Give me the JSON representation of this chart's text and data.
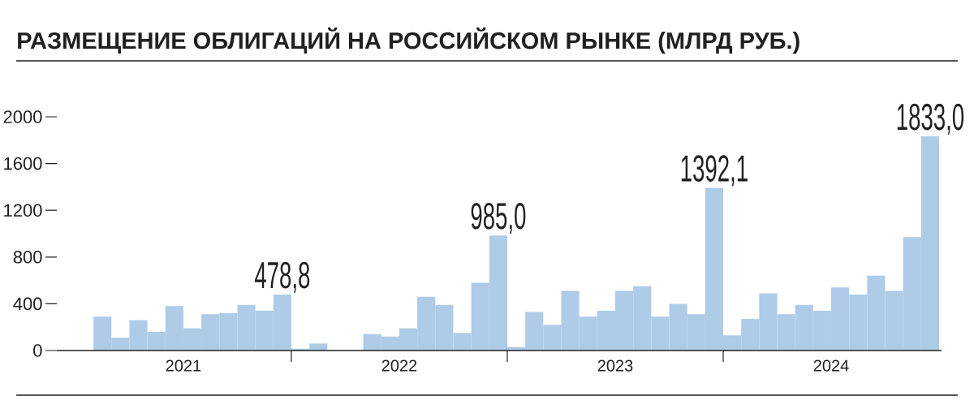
{
  "chart_data": {
    "type": "bar",
    "title": "РАЗМЕЩЕНИЕ ОБЛИГАЦИЙ НА РОССИЙСКОМ РЫНКЕ (МЛРД РУБ.)",
    "x": [
      "2021-01",
      "2021-02",
      "2021-03",
      "2021-04",
      "2021-05",
      "2021-06",
      "2021-07",
      "2021-08",
      "2021-09",
      "2021-10",
      "2021-11",
      "2021-12",
      "2022-01",
      "2022-02",
      "2022-03",
      "2022-04",
      "2022-05",
      "2022-06",
      "2022-07",
      "2022-08",
      "2022-09",
      "2022-10",
      "2022-11",
      "2022-12",
      "2023-01",
      "2023-02",
      "2023-03",
      "2023-04",
      "2023-05",
      "2023-06",
      "2023-07",
      "2023-08",
      "2023-09",
      "2023-10",
      "2023-11",
      "2023-12",
      "2024-01",
      "2024-02",
      "2024-03",
      "2024-04",
      "2024-05",
      "2024-06",
      "2024-07",
      "2024-08",
      "2024-09",
      "2024-10",
      "2024-11",
      "2024-12"
    ],
    "values": [
      0,
      290,
      110,
      260,
      160,
      380,
      190,
      310,
      320,
      390,
      340,
      478.8,
      15,
      60,
      0,
      0,
      140,
      120,
      190,
      460,
      390,
      150,
      580,
      985.0,
      30,
      330,
      220,
      510,
      290,
      340,
      510,
      550,
      290,
      400,
      310,
      1392.1,
      130,
      270,
      490,
      310,
      390,
      340,
      540,
      480,
      640,
      510,
      970,
      1833.0
    ],
    "value_labels": [
      null,
      null,
      null,
      null,
      null,
      null,
      null,
      null,
      null,
      null,
      null,
      "478,8",
      null,
      null,
      null,
      null,
      null,
      null,
      null,
      null,
      null,
      null,
      null,
      "985,0",
      null,
      null,
      null,
      null,
      null,
      null,
      null,
      null,
      null,
      null,
      null,
      "1392,1",
      null,
      null,
      null,
      null,
      null,
      null,
      null,
      null,
      null,
      null,
      null,
      "1833,0"
    ],
    "color": "#aecbe8",
    "xlim": [
      "2020-11-15",
      "2024-12-20"
    ],
    "xticks": [
      {
        "value": "2021-06-16",
        "label": "2021"
      },
      {
        "value": "2021-12-16",
        "label": null
      },
      {
        "value": "2022-06-16",
        "label": "2022"
      },
      {
        "value": "2022-12-16",
        "label": null
      },
      {
        "value": "2023-06-16",
        "label": "2023"
      },
      {
        "value": "2023-12-16",
        "label": null
      },
      {
        "value": "2024-06-16",
        "label": "2024"
      }
    ],
    "ylim": [
      0,
      2000
    ],
    "yticks": [
      0,
      400,
      800,
      1200,
      1600,
      2000
    ]
  }
}
